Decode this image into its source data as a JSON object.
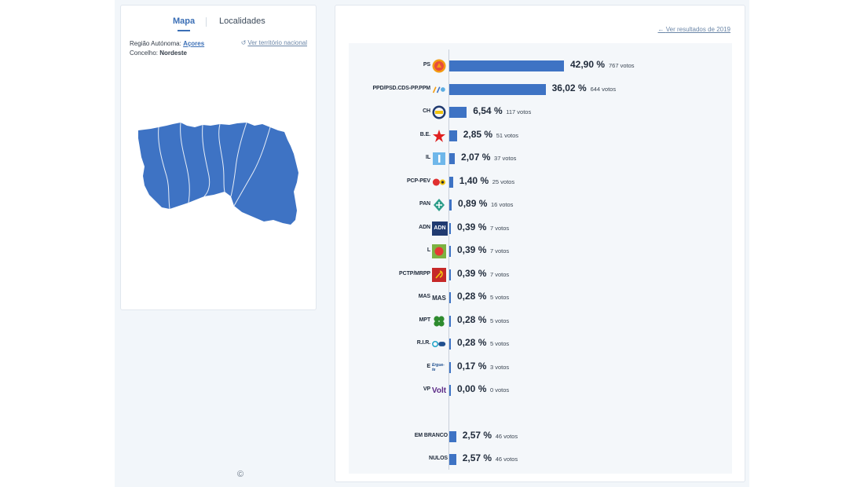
{
  "tabs": {
    "map": "Mapa",
    "localities": "Localidades"
  },
  "location": {
    "region_label": "Região Autónoma:",
    "region_value": "Açores",
    "council_label": "Concelho:",
    "council_value": "Nordeste",
    "national_link": "Ver território nacional"
  },
  "copyright_symbol": "©",
  "previous_results_link": "Ver resultados de 2019",
  "accent_color": "#3e73c4",
  "results": [
    {
      "party": "PS",
      "logo": "ps-logo",
      "percent": 42.9,
      "percent_label": "42,90 %",
      "votes_label": "767 votos"
    },
    {
      "party": "PPD/PSD.CDS-PP.PPM",
      "logo": "ad-logo",
      "percent": 36.02,
      "percent_label": "36,02 %",
      "votes_label": "644 votos"
    },
    {
      "party": "CH",
      "logo": "chega-logo",
      "percent": 6.54,
      "percent_label": "6,54 %",
      "votes_label": "117 votos"
    },
    {
      "party": "B.E.",
      "logo": "be-star-logo",
      "percent": 2.85,
      "percent_label": "2,85 %",
      "votes_label": "51 votos"
    },
    {
      "party": "IL",
      "logo": "il-logo",
      "percent": 2.07,
      "percent_label": "2,07 %",
      "votes_label": "37 votos"
    },
    {
      "party": "PCP-PEV",
      "logo": "cdu-logo",
      "percent": 1.4,
      "percent_label": "1,40 %",
      "votes_label": "25 votos"
    },
    {
      "party": "PAN",
      "logo": "pan-logo",
      "percent": 0.89,
      "percent_label": "0,89 %",
      "votes_label": "16 votos"
    },
    {
      "party": "ADN",
      "logo": "adn-logo",
      "logo_text": "ADN",
      "percent": 0.39,
      "percent_label": "0,39 %",
      "votes_label": "7 votos"
    },
    {
      "party": "L",
      "logo": "livre-logo",
      "percent": 0.39,
      "percent_label": "0,39 %",
      "votes_label": "7 votos"
    },
    {
      "party": "PCTP/MRPP",
      "logo": "pctp-logo",
      "percent": 0.39,
      "percent_label": "0,39 %",
      "votes_label": "7 votos"
    },
    {
      "party": "MAS",
      "logo": "mas-logo",
      "logo_text": "MAS",
      "percent": 0.28,
      "percent_label": "0,28 %",
      "votes_label": "5 votos"
    },
    {
      "party": "MPT",
      "logo": "mpt-clover-logo",
      "percent": 0.28,
      "percent_label": "0,28 %",
      "votes_label": "5 votos"
    },
    {
      "party": "R.I.R.",
      "logo": "rir-logo",
      "percent": 0.28,
      "percent_label": "0,28 %",
      "votes_label": "5 votos"
    },
    {
      "party": "E",
      "logo": "ergue-te-logo",
      "logo_text": "Ergue-te",
      "percent": 0.17,
      "percent_label": "0,17 %",
      "votes_label": "3 votos"
    },
    {
      "party": "VP",
      "logo": "volt-logo",
      "logo_text": "Volt",
      "percent": 0.0,
      "percent_label": "0,00 %",
      "votes_label": "0 votos"
    },
    {
      "party": "EM BRANCO",
      "logo": "",
      "percent": 2.57,
      "percent_label": "2,57 %",
      "votes_label": "46 votos"
    },
    {
      "party": "NULOS",
      "logo": "",
      "percent": 2.57,
      "percent_label": "2,57 %",
      "votes_label": "46 votos"
    }
  ]
}
